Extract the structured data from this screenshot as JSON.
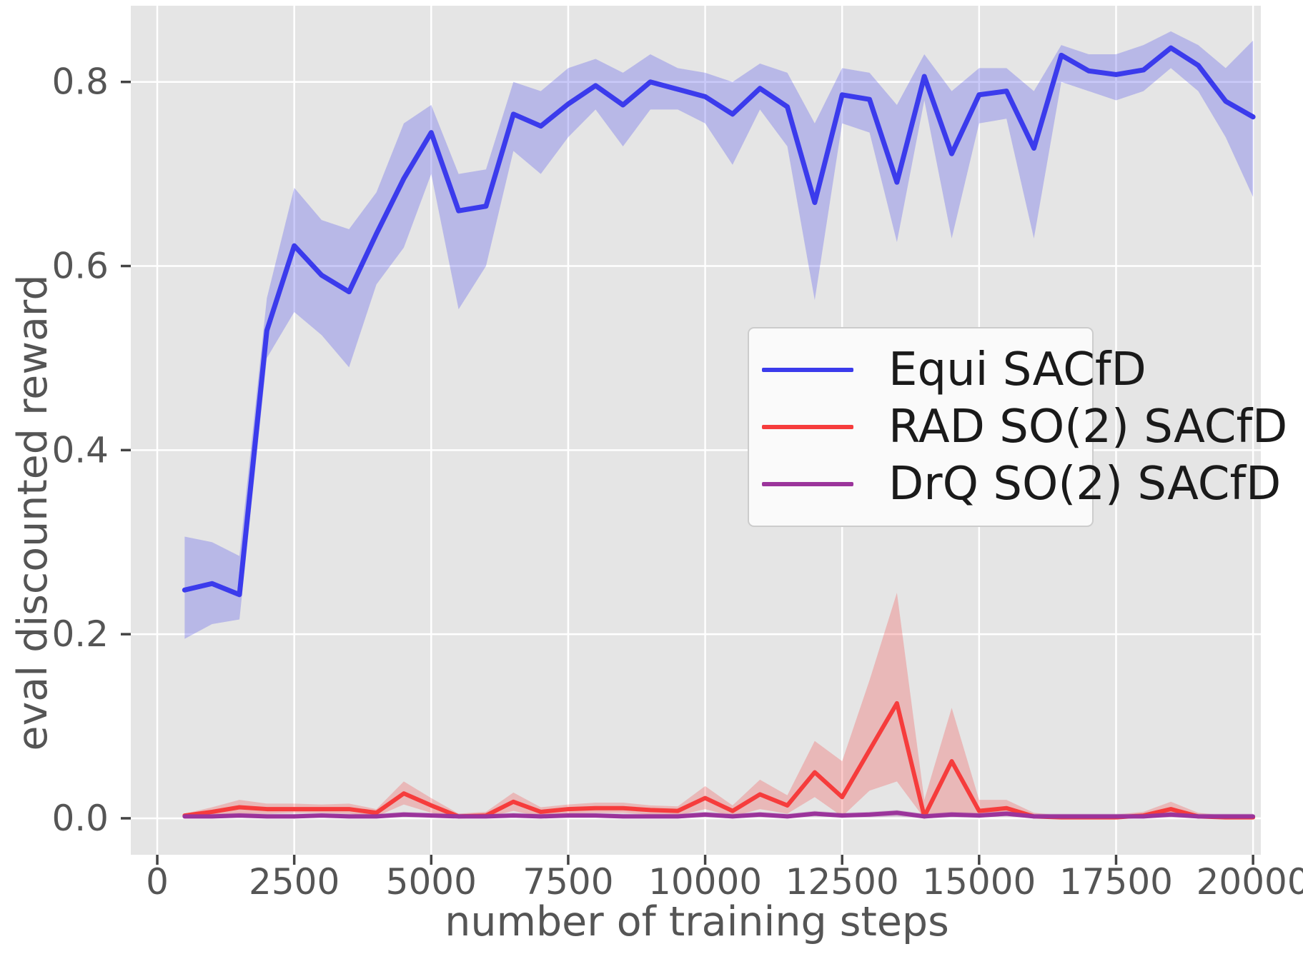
{
  "chart_data": {
    "type": "line",
    "title": "",
    "xlabel": "number of training steps",
    "ylabel": "eval discounted reward",
    "xlim": [
      -483,
      20142
    ],
    "ylim": [
      -0.0396,
      0.8828
    ],
    "grid": true,
    "legend_position": "center right",
    "plot_background": "#e5e5e5",
    "grid_color": "#ffffff",
    "tick_color": "#444444",
    "text_color": "#555555",
    "x_ticks": [
      {
        "v": 0,
        "label": "0"
      },
      {
        "v": 2500,
        "label": "2500"
      },
      {
        "v": 5000,
        "label": "5000"
      },
      {
        "v": 7500,
        "label": "7500"
      },
      {
        "v": 10000,
        "label": "10000"
      },
      {
        "v": 12500,
        "label": "12500"
      },
      {
        "v": 15000,
        "label": "15000"
      },
      {
        "v": 17500,
        "label": "17500"
      },
      {
        "v": 20000,
        "label": "20000"
      }
    ],
    "y_ticks": [
      {
        "v": 0.0,
        "label": "0.0"
      },
      {
        "v": 0.2,
        "label": "0.2"
      },
      {
        "v": 0.4,
        "label": "0.4"
      },
      {
        "v": 0.6,
        "label": "0.6"
      },
      {
        "v": 0.8,
        "label": "0.8"
      }
    ],
    "x": [
      500,
      1000,
      1500,
      2000,
      2500,
      3000,
      3500,
      4000,
      4500,
      5000,
      5500,
      6000,
      6500,
      7000,
      7500,
      8000,
      8500,
      9000,
      9500,
      10000,
      10500,
      11000,
      11500,
      12000,
      12500,
      13000,
      13500,
      14000,
      14500,
      15000,
      15500,
      16000,
      16500,
      17000,
      17500,
      18000,
      18500,
      19000,
      19500,
      20000
    ],
    "series": [
      {
        "name": "Equi SACfD",
        "color": "#3b3bec",
        "band_color": "rgba(80,80,235,0.30)",
        "line_width": 7,
        "values": [
          0.248,
          0.255,
          0.243,
          0.53,
          0.622,
          0.59,
          0.572,
          0.635,
          0.695,
          0.745,
          0.66,
          0.665,
          0.765,
          0.752,
          0.776,
          0.796,
          0.775,
          0.8,
          0.792,
          0.784,
          0.765,
          0.793,
          0.773,
          0.669,
          0.786,
          0.781,
          0.691,
          0.806,
          0.722,
          0.786,
          0.79,
          0.728,
          0.829,
          0.812,
          0.808,
          0.813,
          0.837,
          0.818,
          0.779,
          0.762
        ],
        "lo": [
          0.195,
          0.211,
          0.216,
          0.5,
          0.55,
          0.525,
          0.49,
          0.58,
          0.62,
          0.7,
          0.553,
          0.6,
          0.725,
          0.7,
          0.74,
          0.77,
          0.73,
          0.77,
          0.77,
          0.755,
          0.71,
          0.77,
          0.73,
          0.563,
          0.755,
          0.745,
          0.626,
          0.78,
          0.63,
          0.755,
          0.76,
          0.63,
          0.8,
          0.79,
          0.78,
          0.79,
          0.815,
          0.79,
          0.74,
          0.675
        ],
        "hi": [
          0.306,
          0.3,
          0.285,
          0.565,
          0.685,
          0.65,
          0.64,
          0.68,
          0.755,
          0.775,
          0.7,
          0.705,
          0.8,
          0.79,
          0.815,
          0.825,
          0.81,
          0.83,
          0.815,
          0.81,
          0.8,
          0.82,
          0.81,
          0.755,
          0.815,
          0.81,
          0.775,
          0.83,
          0.79,
          0.815,
          0.815,
          0.79,
          0.84,
          0.83,
          0.83,
          0.84,
          0.855,
          0.84,
          0.815,
          0.845
        ]
      },
      {
        "name": "RAD SO(2) SACfD",
        "color": "#f63c3c",
        "band_color": "rgba(246,70,70,0.28)",
        "line_width": 6,
        "values": [
          0.003,
          0.007,
          0.012,
          0.01,
          0.01,
          0.01,
          0.01,
          0.006,
          0.027,
          0.014,
          0.002,
          0.003,
          0.018,
          0.007,
          0.01,
          0.011,
          0.011,
          0.009,
          0.008,
          0.022,
          0.008,
          0.026,
          0.014,
          0.05,
          0.023,
          0.074,
          0.125,
          0.002,
          0.062,
          0.008,
          0.011,
          0.002,
          0.001,
          0.001,
          0.001,
          0.003,
          0.01,
          0.002,
          0.001,
          0.001
        ],
        "lo": [
          0.001,
          0.003,
          0.005,
          0.005,
          0.006,
          0.006,
          0.005,
          0.002,
          0.015,
          0.006,
          0.0,
          0.001,
          0.008,
          0.002,
          0.005,
          0.006,
          0.006,
          0.004,
          0.003,
          0.01,
          0.002,
          0.01,
          0.005,
          0.023,
          0.002,
          0.03,
          0.04,
          0.0,
          0.005,
          0.001,
          0.004,
          0.0,
          0.0,
          0.0,
          0.0,
          0.001,
          0.004,
          0.0,
          0.0,
          0.0
        ],
        "hi": [
          0.005,
          0.012,
          0.02,
          0.016,
          0.016,
          0.015,
          0.016,
          0.01,
          0.04,
          0.022,
          0.005,
          0.007,
          0.028,
          0.012,
          0.015,
          0.017,
          0.017,
          0.014,
          0.013,
          0.035,
          0.014,
          0.042,
          0.025,
          0.084,
          0.062,
          0.15,
          0.245,
          0.02,
          0.12,
          0.02,
          0.02,
          0.006,
          0.003,
          0.003,
          0.004,
          0.007,
          0.018,
          0.006,
          0.003,
          0.004
        ]
      },
      {
        "name": "DrQ SO(2) SACfD",
        "color": "#9b349b",
        "band_color": "rgba(155,60,155,0.25)",
        "line_width": 6,
        "values": [
          0.002,
          0.002,
          0.003,
          0.002,
          0.002,
          0.003,
          0.002,
          0.002,
          0.004,
          0.003,
          0.002,
          0.002,
          0.003,
          0.002,
          0.003,
          0.003,
          0.002,
          0.002,
          0.002,
          0.004,
          0.002,
          0.004,
          0.002,
          0.005,
          0.003,
          0.004,
          0.006,
          0.002,
          0.004,
          0.003,
          0.005,
          0.002,
          0.002,
          0.002,
          0.002,
          0.002,
          0.004,
          0.002,
          0.002,
          0.002
        ],
        "lo": [
          0.0,
          0.0,
          0.001,
          0.0,
          0.0,
          0.001,
          0.0,
          0.0,
          0.001,
          0.001,
          0.0,
          0.0,
          0.001,
          0.0,
          0.001,
          0.001,
          0.0,
          0.0,
          0.0,
          0.001,
          0.0,
          0.001,
          0.0,
          0.002,
          0.001,
          0.001,
          0.002,
          0.0,
          0.001,
          0.001,
          0.002,
          0.0,
          0.0,
          0.0,
          0.0,
          0.0,
          0.001,
          0.0,
          0.0,
          0.0
        ],
        "hi": [
          0.005,
          0.005,
          0.006,
          0.005,
          0.005,
          0.006,
          0.005,
          0.005,
          0.007,
          0.006,
          0.005,
          0.005,
          0.006,
          0.005,
          0.006,
          0.006,
          0.005,
          0.005,
          0.005,
          0.007,
          0.005,
          0.007,
          0.005,
          0.008,
          0.006,
          0.007,
          0.009,
          0.005,
          0.007,
          0.006,
          0.008,
          0.005,
          0.005,
          0.005,
          0.005,
          0.005,
          0.007,
          0.005,
          0.005,
          0.005
        ]
      }
    ]
  }
}
